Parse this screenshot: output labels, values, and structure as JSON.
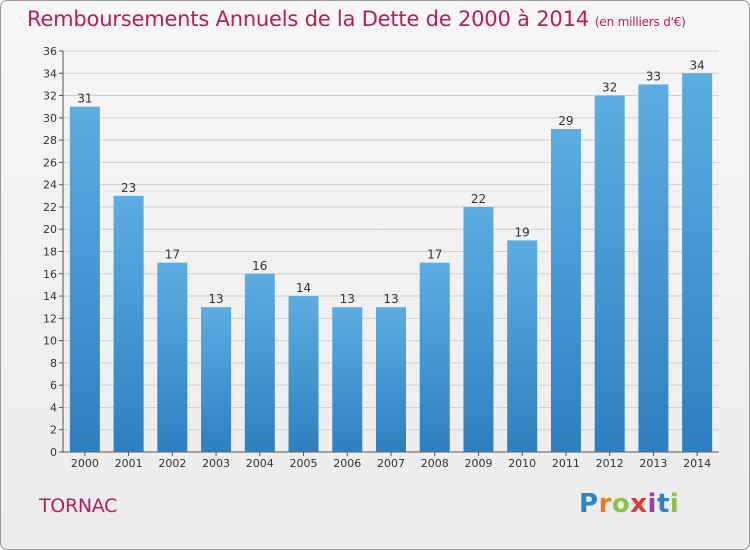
{
  "chart_data": {
    "type": "bar",
    "title": "Remboursements Annuels de la Dette de 2000 à 2014",
    "unit_note": "(en milliers d'€)",
    "categories": [
      "2000",
      "2001",
      "2002",
      "2003",
      "2004",
      "2005",
      "2006",
      "2007",
      "2008",
      "2009",
      "2010",
      "2011",
      "2012",
      "2013",
      "2014"
    ],
    "values": [
      31,
      23,
      17,
      13,
      16,
      14,
      13,
      13,
      17,
      22,
      19,
      29,
      32,
      33,
      34
    ],
    "ylim": [
      0,
      36
    ],
    "yticks": [
      0,
      2,
      4,
      6,
      8,
      10,
      12,
      14,
      16,
      18,
      20,
      22,
      24,
      26,
      28,
      30,
      32,
      34,
      36
    ],
    "xlabel": "",
    "ylabel": "",
    "grid": true,
    "colors": {
      "bar_light": "#5dade2",
      "bar_dark": "#2e7fc0",
      "title": "#c2185b",
      "grid": "#cfcfcf"
    }
  },
  "footer": {
    "place_name": "TORNAC"
  },
  "logo": {
    "letters": [
      {
        "char": "P",
        "color": "#2e86c1"
      },
      {
        "char": "r",
        "color": "#e67e22"
      },
      {
        "char": "o",
        "color": "#8bc34a"
      },
      {
        "char": "x",
        "color": "#e53935"
      },
      {
        "char": "i",
        "color": "#8e44ad"
      },
      {
        "char": "t",
        "color": "#2e86c1"
      },
      {
        "char": "i",
        "color": "#8bc34a"
      }
    ]
  }
}
